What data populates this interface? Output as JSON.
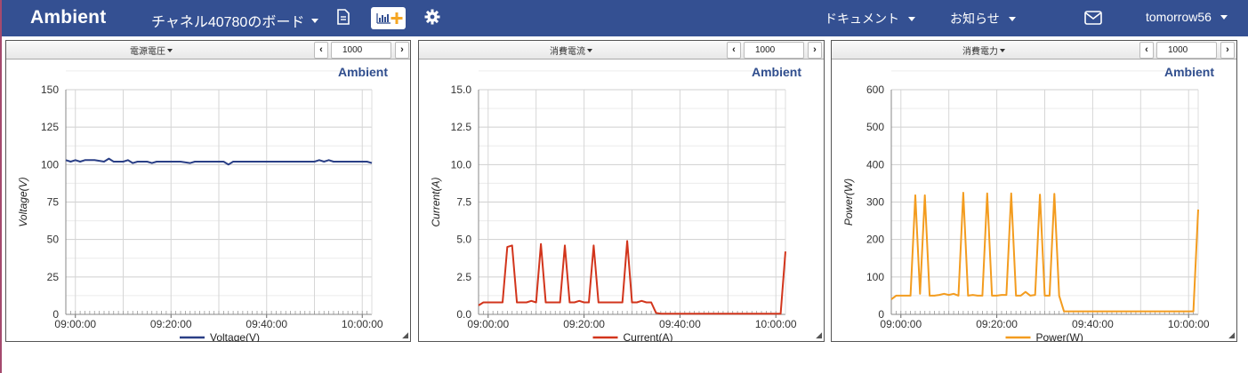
{
  "navbar": {
    "brand": "Ambient",
    "board_title": "チャネル40780のボード",
    "menu_docs": "ドキュメント",
    "menu_news": "お知らせ",
    "user": "tomorrow56",
    "icons": [
      "document-icon",
      "add-chart-icon",
      "gear-icon",
      "mail-icon"
    ],
    "colors": {
      "bar": "#345092",
      "text": "#ffffff",
      "add_plus": "#f5a623"
    }
  },
  "panels": [
    {
      "title": "電源電圧",
      "count": "1000",
      "watermark": "Ambient",
      "legend": "Voltage(V)",
      "ylabel": "Voltage(V)"
    },
    {
      "title": "消費電流",
      "count": "1000",
      "watermark": "Ambient",
      "legend": "Current(A)",
      "ylabel": "Current(A)"
    },
    {
      "title": "消費電力",
      "count": "1000",
      "watermark": "Ambient",
      "legend": "Power(W)",
      "ylabel": "Power(W)"
    }
  ],
  "chart_data": [
    {
      "type": "line",
      "color": "#2a3f86",
      "xlabel": "",
      "ylabel": "Voltage(V)",
      "ylim": [
        0,
        150
      ],
      "yticks": [
        "0",
        "25",
        "50",
        "75",
        "100",
        "125",
        "150"
      ],
      "xticks": [
        "09:00:00",
        "09:20:00",
        "09:40:00",
        "10:00:00"
      ],
      "xrange_min": [
        -2,
        62
      ],
      "grid": true,
      "legend": "bottom",
      "series": [
        {
          "name": "Voltage(V)",
          "x": [
            -2,
            -1,
            0,
            1,
            2,
            4,
            6,
            7,
            8,
            9,
            10,
            11,
            12,
            13,
            14,
            15,
            16,
            17,
            18,
            19,
            20,
            22,
            24,
            25,
            26,
            28,
            30,
            31,
            32,
            33,
            34,
            36,
            38,
            40,
            42,
            44,
            46,
            48,
            50,
            51,
            52,
            53,
            54,
            56,
            58,
            60,
            61,
            62
          ],
          "y": [
            103,
            102,
            103,
            102,
            103,
            103,
            102,
            104,
            102,
            102,
            102,
            103,
            101,
            102,
            102,
            102,
            101,
            102,
            102,
            102,
            102,
            102,
            101,
            102,
            102,
            102,
            102,
            102,
            100,
            102,
            102,
            102,
            102,
            102,
            102,
            102,
            102,
            102,
            102,
            103,
            102,
            103,
            102,
            102,
            102,
            102,
            102,
            101
          ]
        }
      ]
    },
    {
      "type": "line",
      "color": "#d2351c",
      "xlabel": "",
      "ylabel": "Current(A)",
      "ylim": [
        0,
        15
      ],
      "yticks": [
        "0.0",
        "2.5",
        "5.0",
        "7.5",
        "10.0",
        "12.5",
        "15.0"
      ],
      "xticks": [
        "09:00:00",
        "09:20:00",
        "09:40:00",
        "10:00:00"
      ],
      "xrange_min": [
        -2,
        62
      ],
      "grid": true,
      "legend": "bottom",
      "series": [
        {
          "name": "Current(A)",
          "x": [
            -2,
            -1,
            0,
            1,
            2,
            3,
            4,
            5,
            6,
            7,
            8,
            9,
            10,
            11,
            12,
            13,
            14,
            15,
            16,
            17,
            18,
            19,
            20,
            21,
            22,
            23,
            24,
            25,
            26,
            27,
            28,
            29,
            30,
            31,
            32,
            33,
            34,
            35,
            36,
            37,
            38,
            40,
            42,
            44,
            46,
            48,
            50,
            52,
            54,
            56,
            58,
            60,
            61,
            62
          ],
          "y": [
            0.6,
            0.8,
            0.8,
            0.8,
            0.8,
            0.8,
            4.5,
            4.6,
            0.8,
            0.8,
            0.8,
            0.9,
            0.8,
            4.7,
            0.8,
            0.8,
            0.8,
            0.8,
            4.6,
            0.8,
            0.8,
            0.9,
            0.8,
            0.8,
            4.6,
            0.8,
            0.8,
            0.8,
            0.8,
            0.8,
            0.8,
            4.9,
            0.8,
            0.8,
            0.9,
            0.8,
            0.8,
            0.1,
            0.05,
            0.05,
            0.05,
            0.05,
            0.05,
            0.05,
            0.05,
            0.05,
            0.05,
            0.05,
            0.05,
            0.05,
            0.05,
            0.05,
            0.05,
            4.2
          ]
        }
      ]
    },
    {
      "type": "line",
      "color": "#f39c1f",
      "xlabel": "",
      "ylabel": "Power(W)",
      "ylim": [
        0,
        600
      ],
      "yticks": [
        "0",
        "100",
        "200",
        "300",
        "400",
        "500",
        "600"
      ],
      "xticks": [
        "09:00:00",
        "09:20:00",
        "09:40:00",
        "10:00:00"
      ],
      "xrange_min": [
        -2,
        62
      ],
      "grid": true,
      "legend": "bottom",
      "series": [
        {
          "name": "Power(W)",
          "x": [
            -2,
            -1,
            0,
            1,
            2,
            3,
            4,
            5,
            6,
            7,
            8,
            9,
            10,
            11,
            12,
            13,
            14,
            15,
            16,
            17,
            18,
            19,
            20,
            21,
            22,
            23,
            24,
            25,
            26,
            27,
            28,
            29,
            30,
            31,
            32,
            33,
            34,
            35,
            36,
            38,
            40,
            42,
            44,
            46,
            48,
            50,
            52,
            54,
            56,
            58,
            60,
            61,
            62
          ],
          "y": [
            40,
            50,
            50,
            50,
            50,
            318,
            55,
            318,
            50,
            50,
            52,
            55,
            52,
            55,
            50,
            325,
            50,
            52,
            50,
            50,
            323,
            50,
            50,
            52,
            52,
            323,
            50,
            50,
            60,
            50,
            52,
            320,
            50,
            50,
            322,
            50,
            8,
            8,
            8,
            8,
            8,
            8,
            8,
            8,
            8,
            8,
            8,
            8,
            8,
            8,
            8,
            8,
            280
          ]
        }
      ]
    }
  ]
}
